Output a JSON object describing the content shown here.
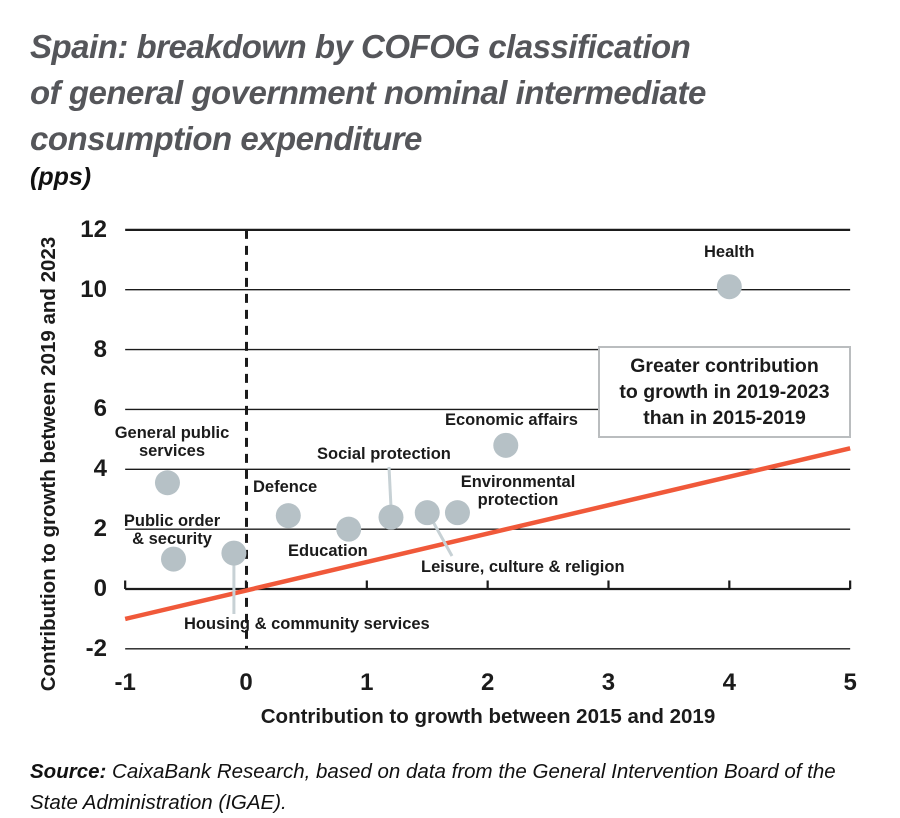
{
  "header": {
    "title_lines": [
      "Spain: breakdown by COFOG classification",
      "of general government nominal intermediate",
      "consumption expenditure"
    ],
    "unit": "(pps)"
  },
  "chart_data": {
    "type": "scatter",
    "title": "Spain: breakdown by COFOG classification of general government nominal intermediate consumption expenditure",
    "unit": "pps",
    "xlabel": "Contribution to growth between 2015 and 2019",
    "ylabel": "Contribution to growth between 2019 and 2023",
    "xlim": [
      -1,
      5
    ],
    "ylim": [
      -2,
      12
    ],
    "x_ticks": [
      -1,
      0,
      1,
      2,
      3,
      4,
      5
    ],
    "y_ticks": [
      12,
      10,
      8,
      6,
      4,
      2,
      0,
      -2
    ],
    "grid": "horizontal",
    "legend": "none",
    "points": [
      {
        "label": "General public services",
        "x": -0.65,
        "y": 3.55
      },
      {
        "label": "Public order & security",
        "x": -0.6,
        "y": 1.0
      },
      {
        "label": "Housing & community services",
        "x": -0.1,
        "y": 1.2
      },
      {
        "label": "Defence",
        "x": 0.35,
        "y": 2.45
      },
      {
        "label": "Education",
        "x": 0.85,
        "y": 2.0
      },
      {
        "label": "Social protection",
        "x": 1.2,
        "y": 2.4
      },
      {
        "label": "Leisure, culture & religion",
        "x": 1.5,
        "y": 2.55
      },
      {
        "label": "Environmental protection",
        "x": 1.75,
        "y": 2.55
      },
      {
        "label": "Economic affairs",
        "x": 2.15,
        "y": 4.8
      },
      {
        "label": "Health",
        "x": 4.0,
        "y": 10.1
      }
    ],
    "trend_line": {
      "x1": -1,
      "y1": -1.0,
      "x2": 5,
      "y2": 4.7
    },
    "reference_line": {
      "x": 0,
      "style": "dashed"
    },
    "annotation_box": {
      "lines": [
        "Greater contribution",
        "to growth in 2019-2023",
        "than in 2015-2019"
      ]
    }
  },
  "colors": {
    "dot": "#b6c1c6",
    "trend": "#f0593a",
    "callout": "#c7d1d5",
    "grid": "#1b1b1b",
    "title": "#55565a",
    "text": "#1b1b1b",
    "box_border": "#babdbf"
  },
  "source": {
    "prefix": "Source:",
    "text": " CaixaBank Research, based on data from the General Intervention Board of the State Administration (IGAE)."
  }
}
